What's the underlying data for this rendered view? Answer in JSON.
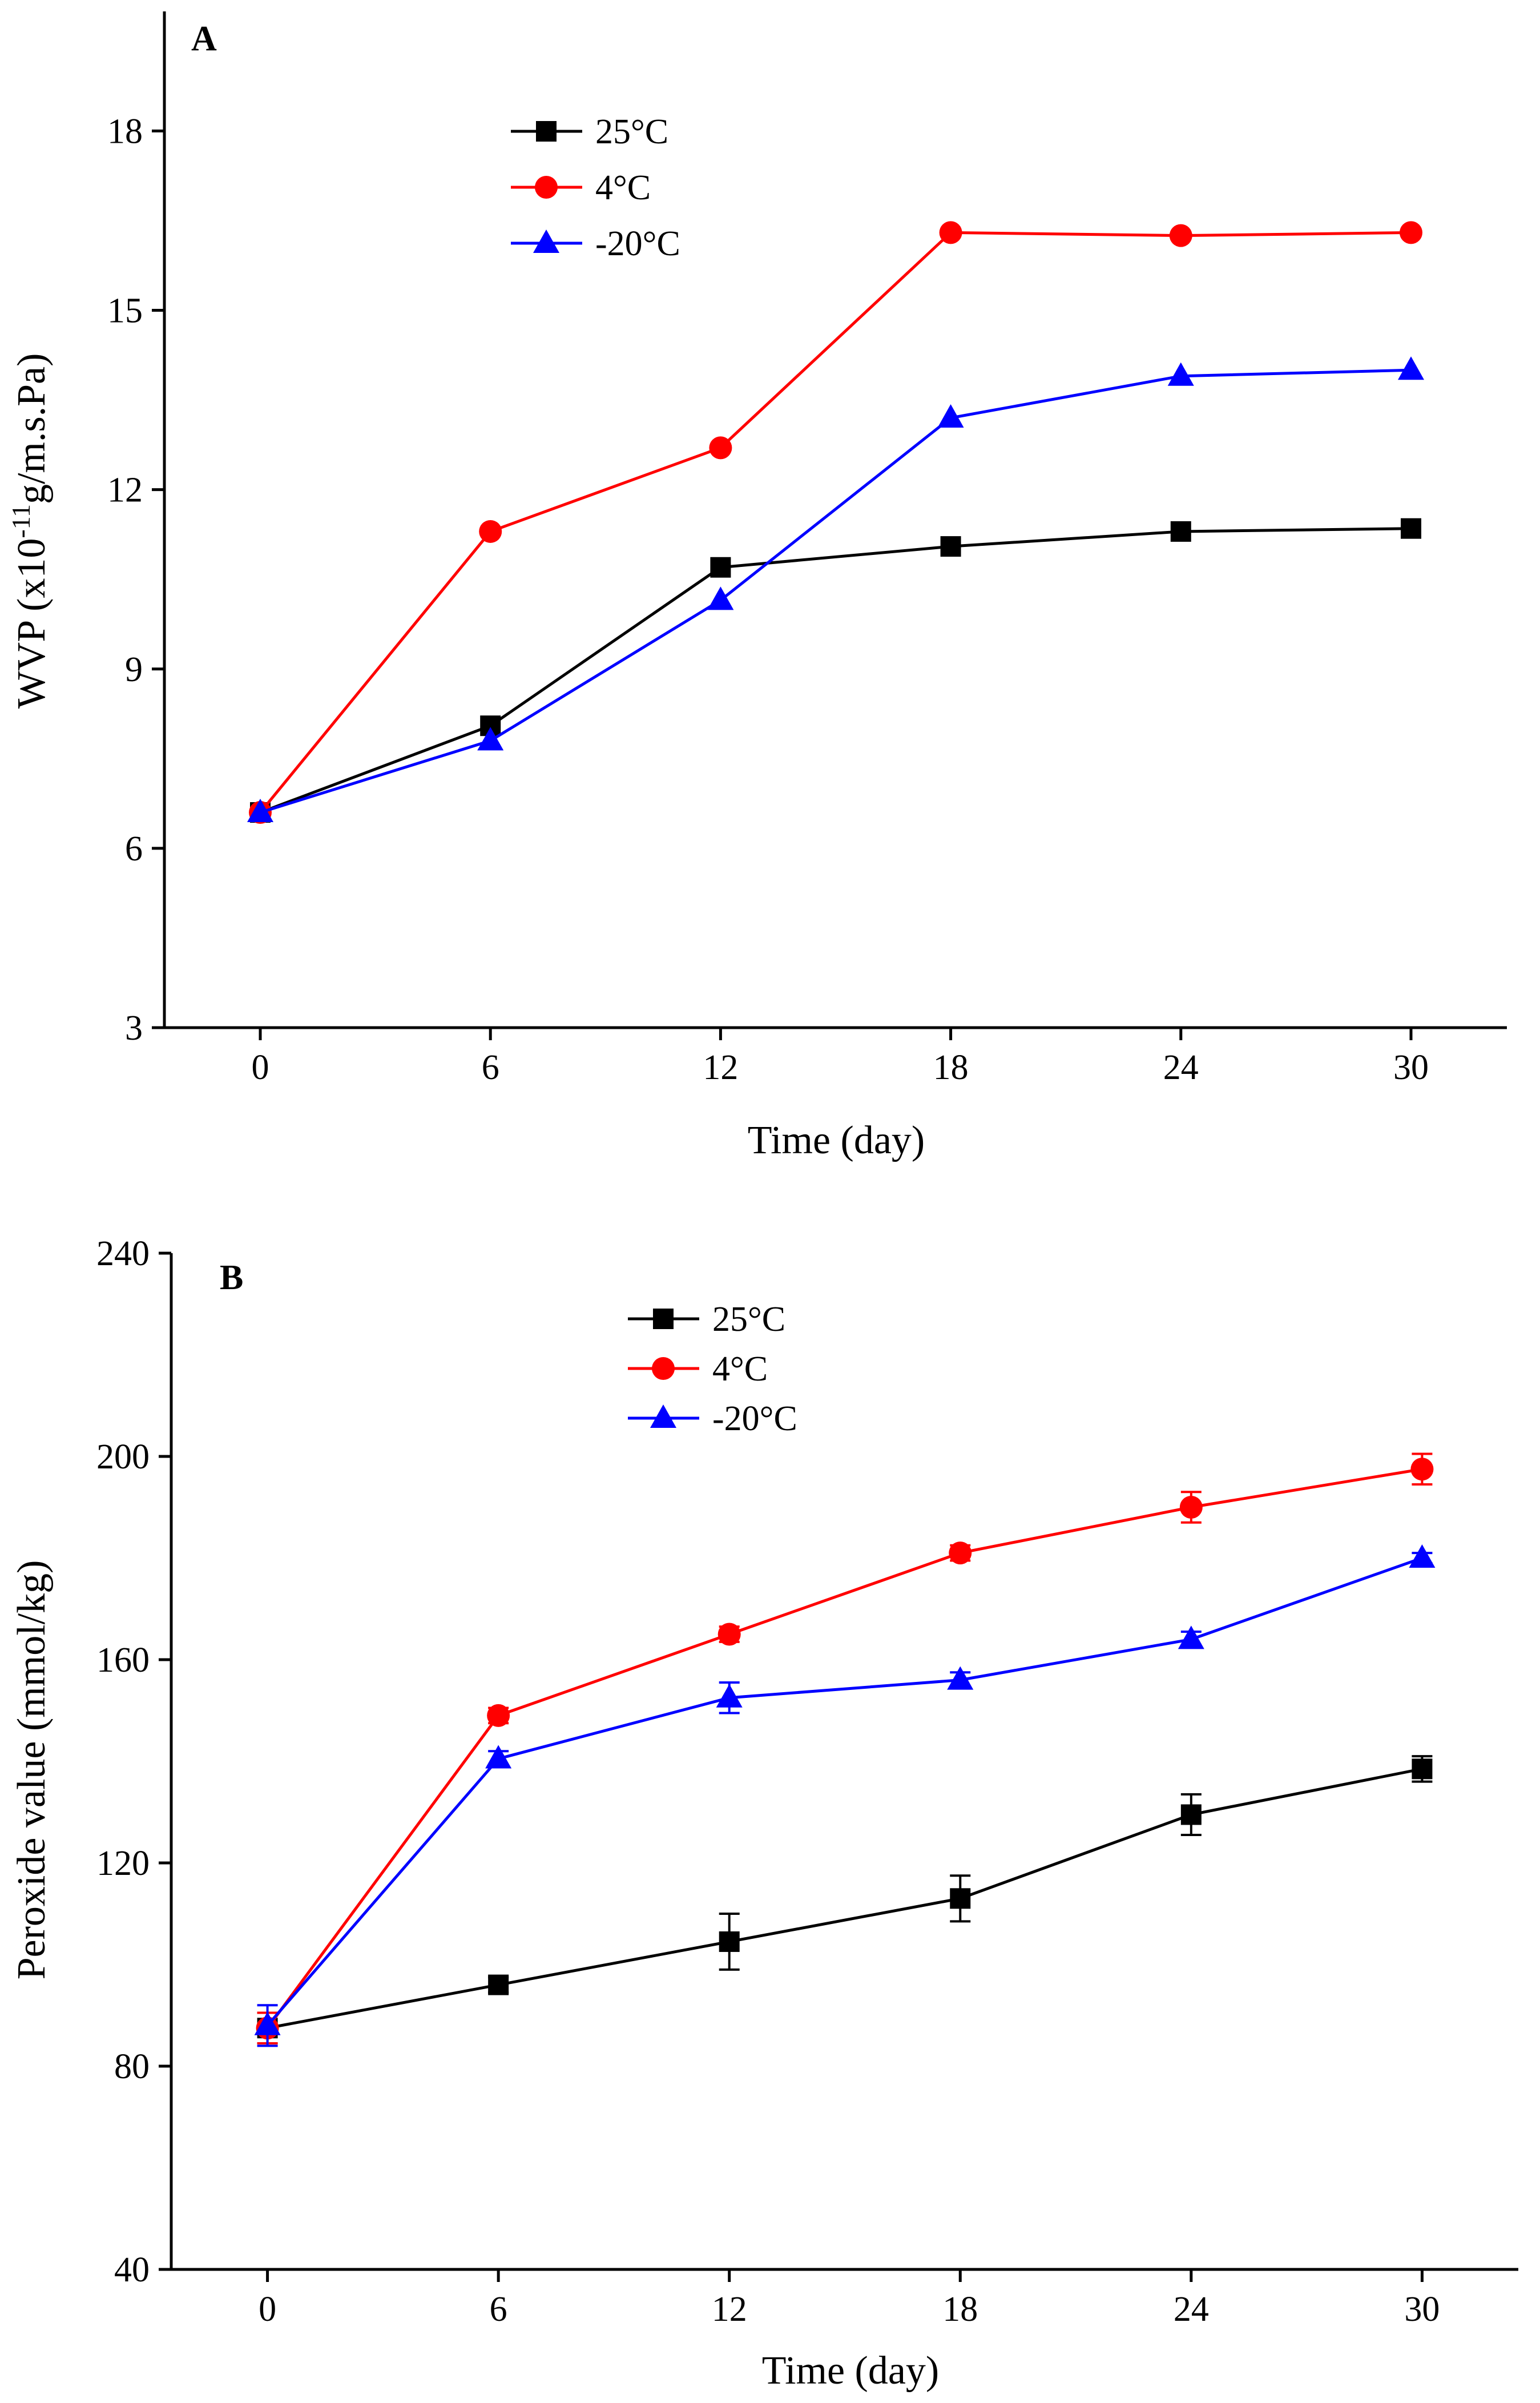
{
  "figure": {
    "panels": [
      "A",
      "B"
    ]
  },
  "chart_data": [
    {
      "type": "line",
      "panel": "A",
      "xlabel": "Time (day)",
      "ylabel_prefix": "WVP (x10",
      "ylabel_exponent": "-11",
      "ylabel_suffix": "g/m.s.Pa)",
      "x": [
        0,
        6,
        12,
        18,
        24,
        30
      ],
      "x_ticks": [
        "0",
        "6",
        "12",
        "18",
        "24",
        "30"
      ],
      "xlim": [
        -2.5,
        32.5
      ],
      "ylim": [
        3,
        20
      ],
      "y_ticks": [
        "3",
        "6",
        "9",
        "12",
        "15",
        "18"
      ],
      "legend_position": "top-left",
      "series": [
        {
          "name": "25°C",
          "color": "#000000",
          "marker": "square",
          "values": [
            6.6,
            8.05,
            10.7,
            11.05,
            11.3,
            11.35
          ],
          "errors": [
            0,
            0,
            0,
            0,
            0,
            0
          ]
        },
        {
          "name": "4°C",
          "color": "#ff0000",
          "marker": "circle",
          "values": [
            6.6,
            11.3,
            12.7,
            16.3,
            16.25,
            16.3
          ],
          "errors": [
            0,
            0,
            0,
            0,
            0,
            0
          ]
        },
        {
          "name": "-20°C",
          "color": "#0000ff",
          "marker": "triangle",
          "values": [
            6.6,
            7.8,
            10.15,
            13.2,
            13.9,
            14.0
          ],
          "errors": [
            0,
            0,
            0,
            0,
            0,
            0
          ]
        }
      ]
    },
    {
      "type": "line",
      "panel": "B",
      "xlabel": "Time (day)",
      "ylabel": "Peroxide value (mmol/kg)",
      "x": [
        0,
        6,
        12,
        18,
        24,
        30
      ],
      "x_ticks": [
        "0",
        "6",
        "12",
        "18",
        "24",
        "30"
      ],
      "xlim": [
        -2.5,
        32.5
      ],
      "ylim": [
        40,
        240
      ],
      "y_ticks": [
        "40",
        "80",
        "120",
        "160",
        "200",
        "240"
      ],
      "legend_position": "top-center",
      "series": [
        {
          "name": "25°C",
          "color": "#000000",
          "marker": "square",
          "values": [
            87.5,
            96,
            104.5,
            113,
            129.5,
            138.5
          ],
          "errors": [
            3,
            1.5,
            5.5,
            4.5,
            4,
            2.5
          ]
        },
        {
          "name": "4°C",
          "color": "#ff0000",
          "marker": "circle",
          "values": [
            87.5,
            149,
            165,
            181,
            190,
            197.5
          ],
          "errors": [
            3,
            1.5,
            1.5,
            1.5,
            3,
            3
          ]
        },
        {
          "name": "-20°C",
          "color": "#0000ff",
          "marker": "triangle",
          "values": [
            88,
            140.5,
            152.5,
            156,
            164,
            180
          ],
          "errors": [
            4,
            1.5,
            3,
            1.5,
            1.5,
            1
          ]
        }
      ]
    }
  ]
}
